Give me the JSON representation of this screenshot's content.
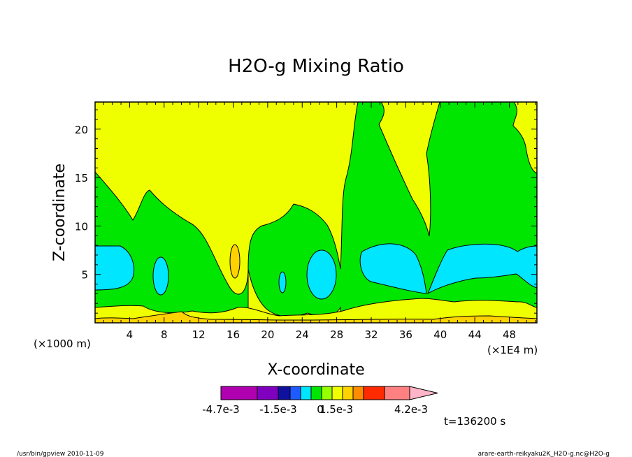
{
  "chart_data": {
    "type": "contour",
    "title": "H2O-g Mixing Ratio",
    "xlabel": "X-coordinate",
    "ylabel": "Z-coordinate",
    "x_ticks": [
      "4",
      "8",
      "12",
      "16",
      "20",
      "24",
      "28",
      "32",
      "36",
      "40",
      "44",
      "48"
    ],
    "x_tick_values": [
      4,
      8,
      12,
      16,
      20,
      24,
      28,
      32,
      36,
      40,
      44,
      48
    ],
    "x_unit_left": "(×1000 m)",
    "x_unit_right": "(×1E4 m)",
    "y_ticks": [
      "5",
      "10",
      "15",
      "20"
    ],
    "y_tick_values": [
      5,
      10,
      15,
      20
    ],
    "xlim": [
      0,
      51.2
    ],
    "ylim": [
      0,
      22.8
    ],
    "time_label": "t=136200 s",
    "colorbar": {
      "colors": [
        "#b000b0",
        "#8000c0",
        "#1010a0",
        "#1e5aff",
        "#00e6ff",
        "#00e600",
        "#96ff00",
        "#f0ff00",
        "#ffd200",
        "#ff8c00",
        "#ff2a00",
        "#ff8080",
        "#ffb4c8"
      ],
      "labels": [
        "-4.7e-3",
        "-1.5e-3",
        "0",
        "1.5e-3",
        "4.2e-3"
      ]
    },
    "levels": [
      {
        "name": "yellow-band",
        "color": "#f0ff00"
      },
      {
        "name": "green-band",
        "color": "#00e600"
      },
      {
        "name": "cyan-band",
        "color": "#00e6ff"
      },
      {
        "name": "orange-band",
        "color": "#ffd200"
      }
    ]
  },
  "footer": {
    "left": "/usr/bin/gpview  2010-11-09",
    "right": "arare-earth-reikyaku2K_H2O-g.nc@H2O-g"
  }
}
